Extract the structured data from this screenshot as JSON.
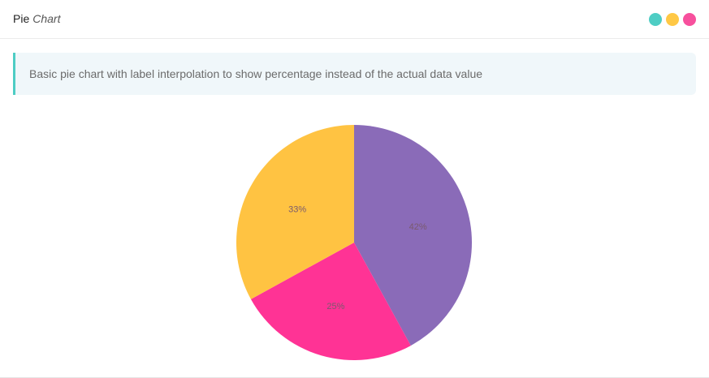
{
  "header": {
    "title_strong": "Pie",
    "title_em": "Chart",
    "dots": [
      {
        "name": "teal-dot",
        "color": "#4ecdc4"
      },
      {
        "name": "yellow-dot",
        "color": "#ffc845"
      },
      {
        "name": "pink-dot",
        "color": "#f7509d"
      }
    ]
  },
  "callout": {
    "text": "Basic pie chart with label interpolation to show percentage instead of the actual data value"
  },
  "chart_data": {
    "type": "pie",
    "slices": [
      {
        "label": "42%",
        "value": 42,
        "color": "#8a6bb8"
      },
      {
        "label": "25%",
        "value": 25,
        "color": "#ff3395"
      },
      {
        "label": "33%",
        "value": 33,
        "color": "#ffc342"
      }
    ],
    "start": "top",
    "direction": "clockwise",
    "label_color": "#7a5a6e"
  }
}
